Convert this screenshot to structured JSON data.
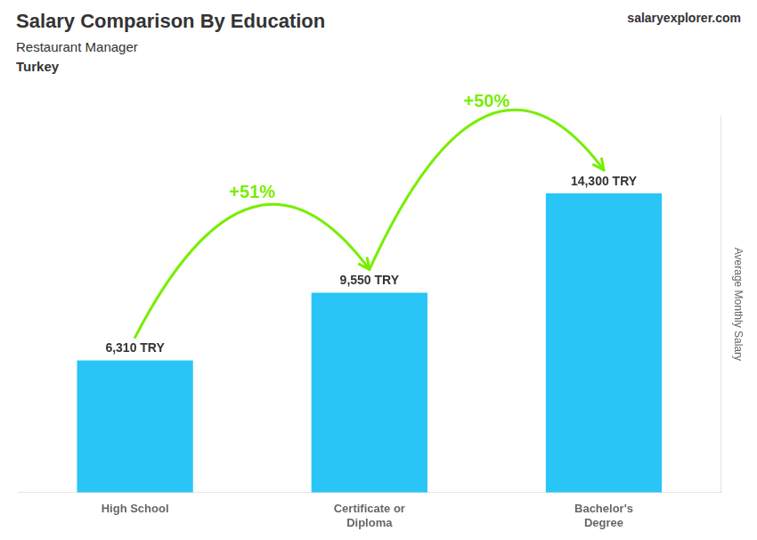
{
  "chart_data": {
    "type": "bar",
    "title": "Salary Comparison By Education",
    "subtitle": "Restaurant Manager",
    "categories": [
      "High School",
      "Certificate or\nDiploma",
      "Bachelor's\nDegree"
    ],
    "values": [
      6310,
      9550,
      14300
    ],
    "value_labels": [
      "6,310 TRY",
      "9,550 TRY",
      "14,300 TRY"
    ],
    "data_labels": true,
    "color": "#29c5f6",
    "ylabel": "Average Monthly Salary",
    "ylim": [
      0,
      18000
    ],
    "grid": false,
    "tick_labels": "x",
    "annotations": [
      {
        "text": "Turkey"
      },
      {
        "text": "salaryexplorer.com"
      },
      {
        "text": "+51%",
        "from": "High School",
        "to": "Certificate or\nDiploma",
        "color": "#77ee00"
      },
      {
        "text": "+50%",
        "from": "Certificate or\nDiploma",
        "to": "Bachelor's\nDegree",
        "color": "#77ee00"
      }
    ]
  }
}
